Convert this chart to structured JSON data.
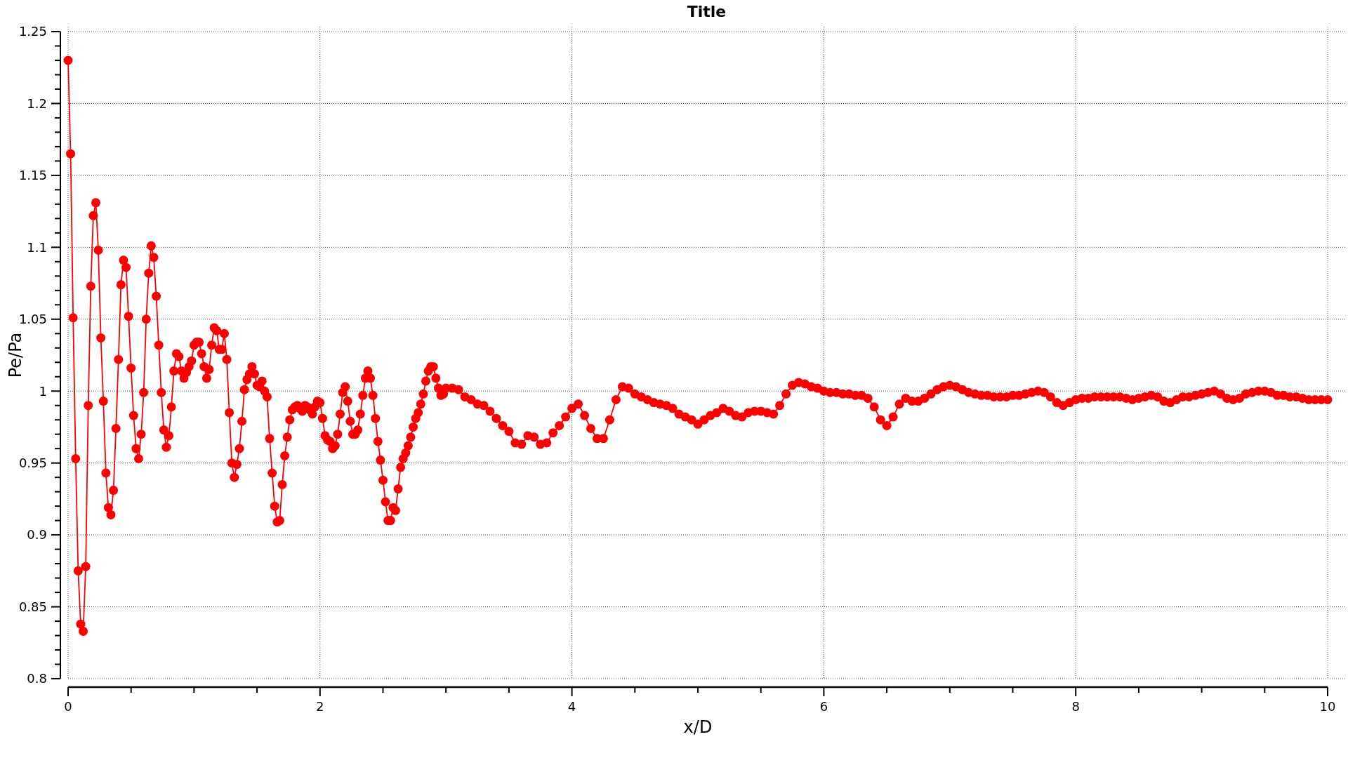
{
  "chart_data": {
    "type": "line",
    "title": "Title",
    "xlabel": "x/D",
    "ylabel": "Pe/Pa",
    "x": [
      0,
      0.02,
      0.04,
      0.06,
      0.08,
      0.1,
      0.12,
      0.14,
      0.16,
      0.18,
      0.2,
      0.22,
      0.24,
      0.26,
      0.28,
      0.3,
      0.32,
      0.34,
      0.36,
      0.38,
      0.4,
      0.42,
      0.44,
      0.46,
      0.48,
      0.5,
      0.52,
      0.54,
      0.56,
      0.58,
      0.6,
      0.62,
      0.64,
      0.66,
      0.68,
      0.7,
      0.72,
      0.74,
      0.76,
      0.78,
      0.8,
      0.82,
      0.84,
      0.86,
      0.88,
      0.9,
      0.92,
      0.94,
      0.96,
      0.98,
      1,
      1.02,
      1.04,
      1.06,
      1.08,
      1.1,
      1.12,
      1.14,
      1.16,
      1.18,
      1.2,
      1.22,
      1.24,
      1.26,
      1.28,
      1.3,
      1.32,
      1.34,
      1.36,
      1.38,
      1.4,
      1.42,
      1.44,
      1.46,
      1.48,
      1.5,
      1.52,
      1.54,
      1.56,
      1.58,
      1.6,
      1.62,
      1.64,
      1.66,
      1.68,
      1.7,
      1.72,
      1.74,
      1.76,
      1.78,
      1.8,
      1.82,
      1.84,
      1.86,
      1.88,
      1.9,
      1.92,
      1.94,
      1.96,
      1.98,
      2,
      2.02,
      2.04,
      2.06,
      2.08,
      2.1,
      2.12,
      2.14,
      2.16,
      2.18,
      2.2,
      2.22,
      2.24,
      2.26,
      2.28,
      2.3,
      2.32,
      2.34,
      2.36,
      2.38,
      2.4,
      2.42,
      2.44,
      2.46,
      2.48,
      2.5,
      2.52,
      2.54,
      2.56,
      2.58,
      2.6,
      2.62,
      2.64,
      2.66,
      2.68,
      2.7,
      2.72,
      2.74,
      2.76,
      2.78,
      2.8,
      2.82,
      2.84,
      2.86,
      2.88,
      2.9,
      2.92,
      2.94,
      2.96,
      2.98,
      3,
      3.05,
      3.1,
      3.15,
      3.2,
      3.25,
      3.3,
      3.35,
      3.4,
      3.45,
      3.5,
      3.55,
      3.6,
      3.65,
      3.7,
      3.75,
      3.8,
      3.85,
      3.9,
      3.95,
      4,
      4.05,
      4.1,
      4.15,
      4.2,
      4.25,
      4.3,
      4.35,
      4.4,
      4.45,
      4.5,
      4.55,
      4.6,
      4.65,
      4.7,
      4.75,
      4.8,
      4.85,
      4.9,
      4.95,
      5,
      5.05,
      5.1,
      5.15,
      5.2,
      5.25,
      5.3,
      5.35,
      5.4,
      5.45,
      5.5,
      5.55,
      5.6,
      5.65,
      5.7,
      5.75,
      5.8,
      5.85,
      5.9,
      5.95,
      6,
      6.05,
      6.1,
      6.15,
      6.2,
      6.25,
      6.3,
      6.35,
      6.4,
      6.45,
      6.5,
      6.55,
      6.6,
      6.65,
      6.7,
      6.75,
      6.8,
      6.85,
      6.9,
      6.95,
      7,
      7.05,
      7.1,
      7.15,
      7.2,
      7.25,
      7.3,
      7.35,
      7.4,
      7.45,
      7.5,
      7.55,
      7.6,
      7.65,
      7.7,
      7.75,
      7.8,
      7.85,
      7.9,
      7.95,
      8,
      8.05,
      8.1,
      8.15,
      8.2,
      8.25,
      8.3,
      8.35,
      8.4,
      8.45,
      8.5,
      8.55,
      8.6,
      8.65,
      8.7,
      8.75,
      8.8,
      8.85,
      8.9,
      8.95,
      9,
      9.05,
      9.1,
      9.15,
      9.2,
      9.25,
      9.3,
      9.35,
      9.4,
      9.45,
      9.5,
      9.55,
      9.6,
      9.65,
      9.7,
      9.75,
      9.8,
      9.85,
      9.9,
      9.95,
      10
    ],
    "series": [
      {
        "color": "#ff0000",
        "values": [
          1.23,
          1.165,
          1.051,
          0.953,
          0.875,
          0.838,
          0.833,
          0.878,
          0.99,
          1.073,
          1.122,
          1.131,
          1.098,
          1.037,
          0.993,
          0.943,
          0.919,
          0.914,
          0.931,
          0.974,
          1.022,
          1.074,
          1.091,
          1.086,
          1.052,
          1.016,
          0.983,
          0.96,
          0.953,
          0.97,
          0.999,
          1.05,
          1.082,
          1.101,
          1.093,
          1.066,
          1.032,
          0.999,
          0.973,
          0.961,
          0.969,
          0.989,
          1.014,
          1.026,
          1.024,
          1.014,
          1.009,
          1.013,
          1.017,
          1.021,
          1.032,
          1.034,
          1.034,
          1.026,
          1.017,
          1.009,
          1.015,
          1.032,
          1.044,
          1.042,
          1.029,
          1.029,
          1.04,
          1.022,
          0.985,
          0.95,
          0.94,
          0.949,
          0.96,
          0.979,
          1.001,
          1.008,
          1.012,
          1.017,
          1.012,
          1.004,
          1.003,
          1.007,
          1.0,
          0.996,
          0.967,
          0.943,
          0.92,
          0.909,
          0.91,
          0.935,
          0.955,
          0.968,
          0.98,
          0.987,
          0.989,
          0.99,
          0.988,
          0.986,
          0.99,
          0.989,
          0.987,
          0.984,
          0.989,
          0.993,
          0.992,
          0.981,
          0.969,
          0.966,
          0.965,
          0.96,
          0.962,
          0.97,
          0.984,
          0.999,
          1.003,
          0.993,
          0.979,
          0.97,
          0.97,
          0.973,
          0.984,
          0.997,
          1.009,
          1.014,
          1.009,
          0.997,
          0.981,
          0.965,
          0.952,
          0.938,
          0.923,
          0.91,
          0.91,
          0.919,
          0.917,
          0.932,
          0.947,
          0.953,
          0.957,
          0.962,
          0.968,
          0.975,
          0.981,
          0.985,
          0.991,
          0.998,
          1.007,
          1.014,
          1.017,
          1.017,
          1.009,
          1.002,
          0.997,
          0.998,
          1.002,
          1.002,
          1.001,
          0.996,
          0.994,
          0.991,
          0.99,
          0.986,
          0.981,
          0.976,
          0.972,
          0.964,
          0.963,
          0.969,
          0.968,
          0.963,
          0.964,
          0.971,
          0.976,
          0.982,
          0.988,
          0.991,
          0.983,
          0.974,
          0.967,
          0.967,
          0.98,
          0.994,
          1.003,
          1.002,
          0.998,
          0.996,
          0.994,
          0.992,
          0.991,
          0.99,
          0.988,
          0.984,
          0.982,
          0.98,
          0.977,
          0.98,
          0.983,
          0.985,
          0.988,
          0.986,
          0.983,
          0.982,
          0.985,
          0.986,
          0.986,
          0.985,
          0.984,
          0.99,
          0.998,
          1.004,
          1.006,
          1.005,
          1.003,
          1.002,
          1.0,
          0.999,
          0.999,
          0.998,
          0.998,
          0.997,
          0.997,
          0.995,
          0.989,
          0.98,
          0.976,
          0.982,
          0.991,
          0.995,
          0.993,
          0.993,
          0.995,
          0.998,
          1.001,
          1.003,
          1.004,
          1.003,
          1.001,
          0.999,
          0.998,
          0.997,
          0.997,
          0.996,
          0.996,
          0.996,
          0.997,
          0.997,
          0.998,
          0.999,
          1.0,
          0.999,
          0.996,
          0.992,
          0.99,
          0.992,
          0.994,
          0.995,
          0.995,
          0.996,
          0.996,
          0.996,
          0.996,
          0.996,
          0.995,
          0.994,
          0.995,
          0.996,
          0.997,
          0.996,
          0.993,
          0.992,
          0.994,
          0.996,
          0.996,
          0.997,
          0.998,
          0.999,
          1.0,
          0.998,
          0.995,
          0.994,
          0.995,
          0.998,
          0.999,
          1.0,
          1.0,
          0.999,
          0.997,
          0.997,
          0.996,
          0.996,
          0.995,
          0.994,
          0.994,
          0.994,
          0.994
        ]
      }
    ],
    "xlim": [
      0,
      10
    ],
    "ylim": [
      0.8,
      1.25
    ],
    "xticks": [
      0,
      {
        "value": 0.5,
        "label": null
      },
      {
        "value": 1,
        "label": null
      },
      {
        "value": 1.5,
        "label": null
      },
      2,
      {
        "value": 2.5,
        "label": null
      },
      {
        "value": 3,
        "label": null
      },
      {
        "value": 3.5,
        "label": null
      },
      4,
      {
        "value": 4.5,
        "label": null
      },
      {
        "value": 5,
        "label": null
      },
      {
        "value": 5.5,
        "label": null
      },
      6,
      {
        "value": 6.5,
        "label": null
      },
      {
        "value": 7,
        "label": null
      },
      {
        "value": 7.5,
        "label": null
      },
      8,
      {
        "value": 8.5,
        "label": null
      },
      {
        "value": 9,
        "label": null
      },
      {
        "value": 9.5,
        "label": null
      },
      10
    ],
    "yticks": [
      0.8,
      {
        "value": 0.81,
        "label": null
      },
      {
        "value": 0.82,
        "label": null
      },
      {
        "value": 0.83,
        "label": null
      },
      {
        "value": 0.84,
        "label": null
      },
      0.85,
      {
        "value": 0.86,
        "label": null
      },
      {
        "value": 0.87,
        "label": null
      },
      {
        "value": 0.88,
        "label": null
      },
      {
        "value": 0.89,
        "label": null
      },
      0.9,
      {
        "value": 0.91,
        "label": null
      },
      {
        "value": 0.92,
        "label": null
      },
      {
        "value": 0.93,
        "label": null
      },
      {
        "value": 0.94,
        "label": null
      },
      0.95,
      {
        "value": 0.96,
        "label": null
      },
      {
        "value": 0.97,
        "label": null
      },
      {
        "value": 0.98,
        "label": null
      },
      {
        "value": 0.99,
        "label": null
      },
      1,
      {
        "value": 1.01,
        "label": null
      },
      {
        "value": 1.02,
        "label": null
      },
      {
        "value": 1.03,
        "label": null
      },
      {
        "value": 1.04,
        "label": null
      },
      1.05,
      {
        "value": 1.06,
        "label": null
      },
      {
        "value": 1.07,
        "label": null
      },
      {
        "value": 1.08,
        "label": null
      },
      {
        "value": 1.09,
        "label": null
      },
      1.1,
      {
        "value": 1.11,
        "label": null
      },
      {
        "value": 1.12,
        "label": null
      },
      {
        "value": 1.13,
        "label": null
      },
      {
        "value": 1.14,
        "label": null
      },
      1.15,
      {
        "value": 1.16,
        "label": null
      },
      {
        "value": 1.17,
        "label": null
      },
      {
        "value": 1.18,
        "label": null
      },
      {
        "value": 1.19,
        "label": null
      },
      1.2,
      {
        "value": 1.21,
        "label": null
      },
      {
        "value": 1.22,
        "label": null
      },
      {
        "value": 1.23,
        "label": null
      },
      {
        "value": 1.24,
        "label": null
      },
      1.25
    ],
    "grid": true,
    "marker": "circle",
    "line_style": "solid"
  }
}
